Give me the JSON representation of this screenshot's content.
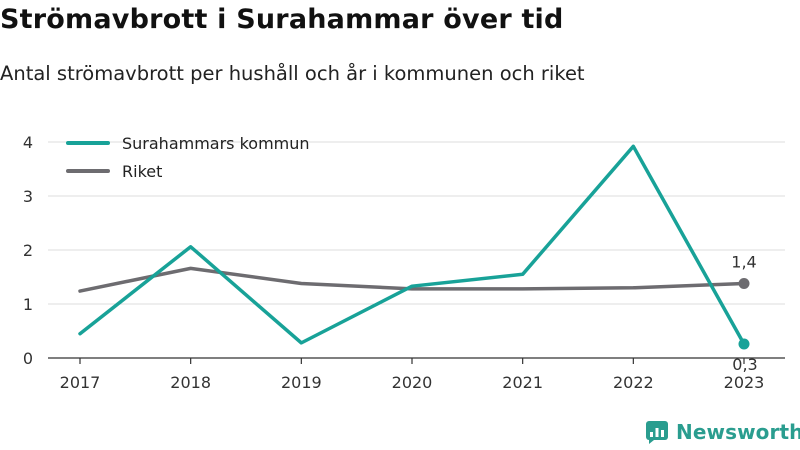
{
  "header": {
    "title": "Strömavbrott i Surahammar över tid",
    "subtitle": "Antal strömavbrott per hushåll och år i kommunen och riket"
  },
  "chart_data": {
    "type": "line",
    "title": "Strömavbrott i Surahammar över tid",
    "subtitle": "Antal strömavbrott per hushåll och år i kommunen och riket",
    "x": [
      2017,
      2018,
      2019,
      2020,
      2021,
      2022,
      2023
    ],
    "x_tick_labels": [
      "2017",
      "2018",
      "2019",
      "2020",
      "2021",
      "2022",
      "2023"
    ],
    "ylim": [
      0,
      4
    ],
    "y_ticks": [
      0,
      1,
      2,
      3,
      4
    ],
    "y_tick_labels": [
      "0",
      "1",
      "2",
      "3",
      "4"
    ],
    "grid": "horizontal",
    "legend_position": "top-left",
    "series": [
      {
        "name": "Surahammars kommun",
        "color": "#18a298",
        "values": [
          0.45,
          2.06,
          0.28,
          1.33,
          1.55,
          3.92,
          0.26
        ],
        "end_label": "0,3"
      },
      {
        "name": "Riket",
        "color": "#6d6c70",
        "values": [
          1.24,
          1.66,
          1.38,
          1.28,
          1.28,
          1.3,
          1.38
        ],
        "end_label": "1,4"
      }
    ]
  },
  "branding": {
    "name": "Newsworthy",
    "icon": "newsworthy-logo-icon",
    "color": "#2a9d8f"
  }
}
